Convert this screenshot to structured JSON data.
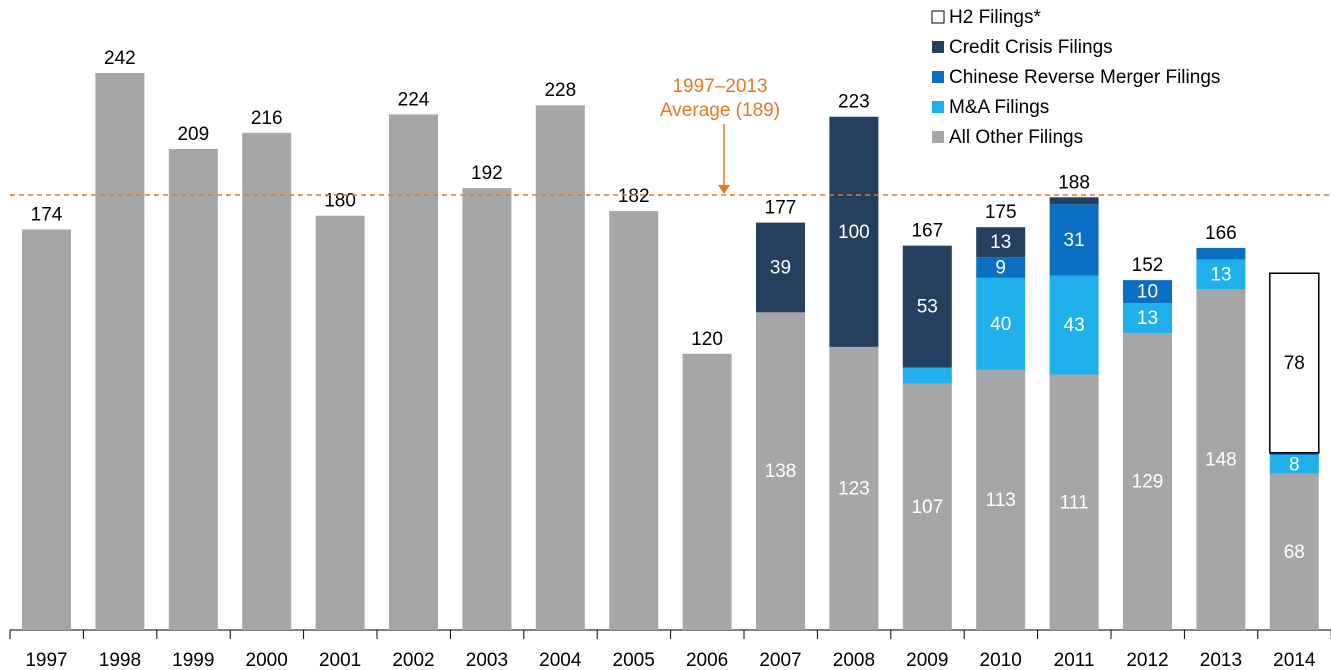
{
  "chart_data": {
    "type": "stacked_bar",
    "categories": [
      "1997",
      "1998",
      "1999",
      "2000",
      "2001",
      "2002",
      "2003",
      "2004",
      "2005",
      "2006",
      "2007",
      "2008",
      "2009",
      "2010",
      "2011",
      "2012",
      "2013",
      "2014"
    ],
    "series": [
      {
        "name": "All Other Filings",
        "color": "#a6a6a6",
        "values": [
          174,
          242,
          209,
          216,
          180,
          224,
          192,
          228,
          182,
          120,
          138,
          123,
          107,
          113,
          111,
          129,
          148,
          68
        ]
      },
      {
        "name": "M&A Filings",
        "color": "#1fb0ec",
        "values": [
          null,
          null,
          null,
          null,
          null,
          null,
          null,
          null,
          null,
          null,
          null,
          null,
          7,
          40,
          43,
          13,
          13,
          8
        ]
      },
      {
        "name": "Chinese Reverse Merger Filings",
        "color": "#0a6fc2",
        "values": [
          null,
          null,
          null,
          null,
          null,
          null,
          null,
          null,
          null,
          null,
          null,
          null,
          null,
          9,
          31,
          10,
          5,
          1
        ]
      },
      {
        "name": "Credit Crisis Filings",
        "color": "#253f5f",
        "values": [
          null,
          null,
          null,
          null,
          null,
          null,
          null,
          null,
          null,
          null,
          39,
          100,
          53,
          13,
          3,
          null,
          null,
          null
        ]
      },
      {
        "name": "H2 Filings*",
        "color": "#ffffff",
        "values": [
          null,
          null,
          null,
          null,
          null,
          null,
          null,
          null,
          null,
          null,
          null,
          null,
          null,
          null,
          null,
          null,
          null,
          78
        ]
      }
    ],
    "totals": [
      174,
      242,
      209,
      216,
      180,
      224,
      192,
      228,
      182,
      120,
      177,
      223,
      167,
      175,
      188,
      152,
      166,
      null
    ],
    "average": {
      "value": 189,
      "label": [
        "1997–2013",
        "Average (189)"
      ],
      "color": "#e87722"
    }
  }
}
